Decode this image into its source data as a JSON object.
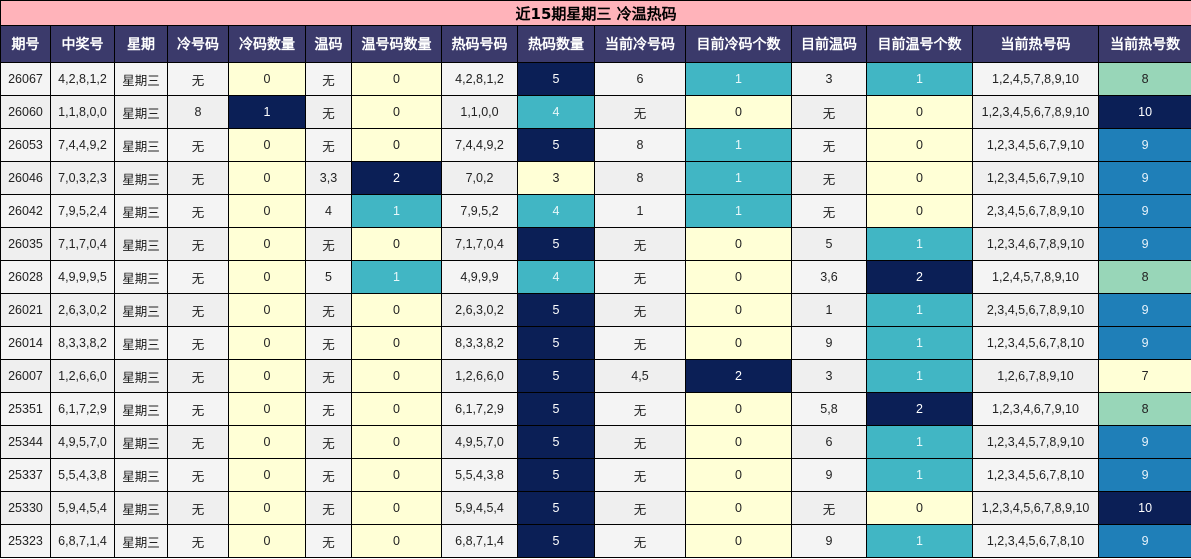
{
  "title": "近15期星期三 冷温热码",
  "colors": {
    "title_bg": "#ffb3ba",
    "header_bg": "#3b3a6b",
    "yellow": "#ffffd6",
    "navy": "#0b1f56",
    "teal": "#41b6c4",
    "blue": "#1f7fb8",
    "mint": "#98d6b8",
    "plain": "#f4f4f4"
  },
  "headers": [
    "期号",
    "中奖号",
    "星期",
    "冷号码",
    "冷码数量",
    "温码",
    "温号码数量",
    "热码号码",
    "热码数量",
    "当前冷号码",
    "目前冷码个数",
    "目前温码",
    "目前温号个数",
    "当前热号码",
    "当前热号数"
  ],
  "rows": [
    [
      "26067",
      "4,2,8,1,2",
      "星期三",
      "无",
      "0",
      "无",
      "0",
      "4,2,8,1,2",
      "5",
      "6",
      "1",
      "3",
      "1",
      "1,2,4,5,7,8,9,10",
      "8"
    ],
    [
      "26060",
      "1,1,8,0,0",
      "星期三",
      "8",
      "1",
      "无",
      "0",
      "1,1,0,0",
      "4",
      "无",
      "0",
      "无",
      "0",
      "1,2,3,4,5,6,7,8,9,10",
      "10"
    ],
    [
      "26053",
      "7,4,4,9,2",
      "星期三",
      "无",
      "0",
      "无",
      "0",
      "7,4,4,9,2",
      "5",
      "8",
      "1",
      "无",
      "0",
      "1,2,3,4,5,6,7,9,10",
      "9"
    ],
    [
      "26046",
      "7,0,3,2,3",
      "星期三",
      "无",
      "0",
      "3,3",
      "2",
      "7,0,2",
      "3",
      "8",
      "1",
      "无",
      "0",
      "1,2,3,4,5,6,7,9,10",
      "9"
    ],
    [
      "26042",
      "7,9,5,2,4",
      "星期三",
      "无",
      "0",
      "4",
      "1",
      "7,9,5,2",
      "4",
      "1",
      "1",
      "无",
      "0",
      "2,3,4,5,6,7,8,9,10",
      "9"
    ],
    [
      "26035",
      "7,1,7,0,4",
      "星期三",
      "无",
      "0",
      "无",
      "0",
      "7,1,7,0,4",
      "5",
      "无",
      "0",
      "5",
      "1",
      "1,2,3,4,6,7,8,9,10",
      "9"
    ],
    [
      "26028",
      "4,9,9,9,5",
      "星期三",
      "无",
      "0",
      "5",
      "1",
      "4,9,9,9",
      "4",
      "无",
      "0",
      "3,6",
      "2",
      "1,2,4,5,7,8,9,10",
      "8"
    ],
    [
      "26021",
      "2,6,3,0,2",
      "星期三",
      "无",
      "0",
      "无",
      "0",
      "2,6,3,0,2",
      "5",
      "无",
      "0",
      "1",
      "1",
      "2,3,4,5,6,7,8,9,10",
      "9"
    ],
    [
      "26014",
      "8,3,3,8,2",
      "星期三",
      "无",
      "0",
      "无",
      "0",
      "8,3,3,8,2",
      "5",
      "无",
      "0",
      "9",
      "1",
      "1,2,3,4,5,6,7,8,10",
      "9"
    ],
    [
      "26007",
      "1,2,6,6,0",
      "星期三",
      "无",
      "0",
      "无",
      "0",
      "1,2,6,6,0",
      "5",
      "4,5",
      "2",
      "3",
      "1",
      "1,2,6,7,8,9,10",
      "7"
    ],
    [
      "25351",
      "6,1,7,2,9",
      "星期三",
      "无",
      "0",
      "无",
      "0",
      "6,1,7,2,9",
      "5",
      "无",
      "0",
      "5,8",
      "2",
      "1,2,3,4,6,7,9,10",
      "8"
    ],
    [
      "25344",
      "4,9,5,7,0",
      "星期三",
      "无",
      "0",
      "无",
      "0",
      "4,9,5,7,0",
      "5",
      "无",
      "0",
      "6",
      "1",
      "1,2,3,4,5,7,8,9,10",
      "9"
    ],
    [
      "25337",
      "5,5,4,3,8",
      "星期三",
      "无",
      "0",
      "无",
      "0",
      "5,5,4,3,8",
      "5",
      "无",
      "0",
      "9",
      "1",
      "1,2,3,4,5,6,7,8,10",
      "9"
    ],
    [
      "25330",
      "5,9,4,5,4",
      "星期三",
      "无",
      "0",
      "无",
      "0",
      "5,9,4,5,4",
      "5",
      "无",
      "0",
      "无",
      "0",
      "1,2,3,4,5,6,7,8,9,10",
      "10"
    ],
    [
      "25323",
      "6,8,7,1,4",
      "星期三",
      "无",
      "0",
      "无",
      "0",
      "6,8,7,1,4",
      "5",
      "无",
      "0",
      "9",
      "1",
      "1,2,3,4,5,6,7,8,10",
      "9"
    ]
  ],
  "cell_styles": [
    [
      "plain",
      "plain",
      "plain",
      "plain",
      "yellow",
      "plain",
      "yellow",
      "plain",
      "navy",
      "plain",
      "teal",
      "plain",
      "teal",
      "plain",
      "mint"
    ],
    [
      "plain",
      "plain",
      "plain",
      "plain",
      "navy",
      "plain",
      "yellow",
      "plain",
      "teal",
      "plain",
      "yellow",
      "plain",
      "yellow",
      "plain",
      "navy"
    ],
    [
      "plain",
      "plain",
      "plain",
      "plain",
      "yellow",
      "plain",
      "yellow",
      "plain",
      "navy",
      "plain",
      "teal",
      "plain",
      "yellow",
      "plain",
      "blue"
    ],
    [
      "plain",
      "plain",
      "plain",
      "plain",
      "yellow",
      "plain",
      "navy",
      "plain",
      "yellow",
      "plain",
      "teal",
      "plain",
      "yellow",
      "plain",
      "blue"
    ],
    [
      "plain",
      "plain",
      "plain",
      "plain",
      "yellow",
      "plain",
      "teal",
      "plain",
      "teal",
      "plain",
      "teal",
      "plain",
      "yellow",
      "plain",
      "blue"
    ],
    [
      "plain",
      "plain",
      "plain",
      "plain",
      "yellow",
      "plain",
      "yellow",
      "plain",
      "navy",
      "plain",
      "yellow",
      "plain",
      "teal",
      "plain",
      "blue"
    ],
    [
      "plain",
      "plain",
      "plain",
      "plain",
      "yellow",
      "plain",
      "teal",
      "plain",
      "teal",
      "plain",
      "yellow",
      "plain",
      "navy",
      "plain",
      "mint"
    ],
    [
      "plain",
      "plain",
      "plain",
      "plain",
      "yellow",
      "plain",
      "yellow",
      "plain",
      "navy",
      "plain",
      "yellow",
      "plain",
      "teal",
      "plain",
      "blue"
    ],
    [
      "plain",
      "plain",
      "plain",
      "plain",
      "yellow",
      "plain",
      "yellow",
      "plain",
      "navy",
      "plain",
      "yellow",
      "plain",
      "teal",
      "plain",
      "blue"
    ],
    [
      "plain",
      "plain",
      "plain",
      "plain",
      "yellow",
      "plain",
      "yellow",
      "plain",
      "navy",
      "plain",
      "navy",
      "plain",
      "teal",
      "plain",
      "yellow"
    ],
    [
      "plain",
      "plain",
      "plain",
      "plain",
      "yellow",
      "plain",
      "yellow",
      "plain",
      "navy",
      "plain",
      "yellow",
      "plain",
      "navy",
      "plain",
      "mint"
    ],
    [
      "plain",
      "plain",
      "plain",
      "plain",
      "yellow",
      "plain",
      "yellow",
      "plain",
      "navy",
      "plain",
      "yellow",
      "plain",
      "teal",
      "plain",
      "blue"
    ],
    [
      "plain",
      "plain",
      "plain",
      "plain",
      "yellow",
      "plain",
      "yellow",
      "plain",
      "navy",
      "plain",
      "yellow",
      "plain",
      "teal",
      "plain",
      "blue"
    ],
    [
      "plain",
      "plain",
      "plain",
      "plain",
      "yellow",
      "plain",
      "yellow",
      "plain",
      "navy",
      "plain",
      "yellow",
      "plain",
      "yellow",
      "plain",
      "navy"
    ],
    [
      "plain",
      "plain",
      "plain",
      "plain",
      "yellow",
      "plain",
      "yellow",
      "plain",
      "navy",
      "plain",
      "yellow",
      "plain",
      "teal",
      "plain",
      "blue"
    ]
  ]
}
